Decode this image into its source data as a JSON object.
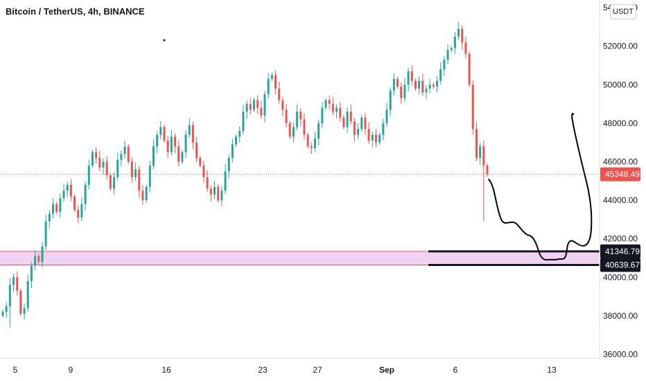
{
  "header": {
    "title": "Bitcoin / TetherUS, 4h, BINANCE",
    "currency": "USDT"
  },
  "colors": {
    "up": "#26a69a",
    "down": "#ef5350",
    "zone_fill": "#e8c8f0",
    "zone_border": "#ef5350",
    "text": "#131722",
    "last_price_bg": "#ef5350",
    "level_bg": "#131722"
  },
  "chart_data": {
    "type": "candlestick",
    "title": "Bitcoin / TetherUS, 4h, BINANCE",
    "ylim": [
      35800,
      54400
    ],
    "y_ticks": [
      "54000.00",
      "52000.00",
      "50000.00",
      "48000.00",
      "46000.00",
      "44000.00",
      "42000.00",
      "40000.00",
      "38000.00",
      "36000.00"
    ],
    "x_ticks": [
      "5",
      "9",
      "16",
      "23",
      "27",
      "Sep",
      "6",
      "13"
    ],
    "last_price": 45348.49,
    "last_price_label": "45348.49",
    "zone": {
      "low": 40639.67,
      "high": 41346.79
    },
    "level_labels": [
      "41346.79",
      "40639.67"
    ],
    "annotations": [
      "hand-drawn projected path from the last price down into the zone and sharply back up",
      "horizontal support lines at 41346.79 and 40639.67"
    ],
    "price_path": [
      38200,
      38500,
      39600,
      40000,
      39300,
      38100,
      38400,
      39800,
      40600,
      41100,
      40800,
      41600,
      42900,
      43300,
      43800,
      43400,
      44100,
      44500,
      44800,
      44200,
      43500,
      43100,
      43800,
      44800,
      45800,
      46500,
      46200,
      45700,
      46000,
      45300,
      44600,
      45200,
      46100,
      46400,
      46800,
      46000,
      45200,
      45600,
      44500,
      44000,
      44700,
      45800,
      46800,
      47400,
      47800,
      47100,
      46500,
      47300,
      46800,
      46000,
      46500,
      47400,
      47900,
      47000,
      46200,
      45800,
      45200,
      44600,
      44300,
      44700,
      44000,
      44500,
      45500,
      46200,
      46900,
      47300,
      47600,
      48600,
      49000,
      48700,
      49200,
      48800,
      48400,
      49500,
      50300,
      50500,
      49800,
      49200,
      48700,
      48000,
      47300,
      47800,
      48600,
      48200,
      47400,
      46800,
      46700,
      47200,
      48000,
      48800,
      49200,
      49000,
      48600,
      48800,
      48300,
      47800,
      48600,
      48100,
      47400,
      47700,
      48300,
      47700,
      47100,
      47400,
      47000,
      47400,
      48000,
      48700,
      49700,
      50300,
      49900,
      49300,
      50000,
      50700,
      50200,
      49800,
      50200,
      49600,
      49800,
      50000,
      49900,
      50200,
      50800,
      51300,
      51800,
      51900,
      52500,
      52900,
      52200,
      51600,
      50000,
      47700,
      46200,
      46800,
      45800,
      45348.49
    ]
  }
}
